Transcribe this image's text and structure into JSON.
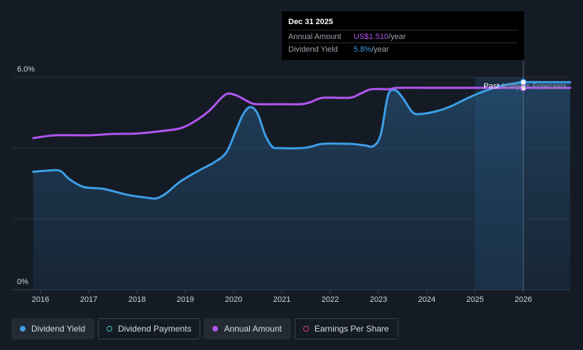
{
  "chart_data": {
    "type": "line",
    "x_axis": {
      "ticks": [
        "2016",
        "2017",
        "2018",
        "2019",
        "2020",
        "2021",
        "2022",
        "2023",
        "2024",
        "2025",
        "2026"
      ],
      "range": [
        2015.6,
        2027.0
      ]
    },
    "y_axis": {
      "ticks": [
        "0%",
        "6.0%"
      ],
      "range": [
        0,
        6.0
      ]
    },
    "grid": true,
    "past_label": "Past",
    "forecast_label": "Analysts Forecasts",
    "forecast_start": 2025.0,
    "highlight_x": 2026.0,
    "series": [
      {
        "name": "Dividend Yield",
        "color": "#3d9fe8",
        "area": true,
        "x": [
          2015.85,
          2016.1,
          2016.4,
          2016.6,
          2016.9,
          2017.3,
          2017.8,
          2018.2,
          2018.4,
          2018.6,
          2018.9,
          2019.3,
          2019.6,
          2019.85,
          2020.05,
          2020.2,
          2020.35,
          2020.5,
          2020.65,
          2020.8,
          2020.95,
          2021.4,
          2021.6,
          2021.85,
          2022.4,
          2022.7,
          2022.9,
          2023.05,
          2023.2,
          2023.35,
          2023.5,
          2023.7,
          2023.85,
          2024.2,
          2024.5,
          2024.8,
          2025.1,
          2025.4,
          2025.6,
          2025.8,
          2026.0,
          2026.5,
          2027.0
        ],
        "y": [
          3.33,
          3.36,
          3.36,
          3.12,
          2.9,
          2.85,
          2.68,
          2.6,
          2.58,
          2.72,
          3.06,
          3.38,
          3.6,
          3.88,
          4.5,
          4.96,
          5.16,
          4.96,
          4.38,
          4.04,
          4.0,
          4.0,
          4.04,
          4.12,
          4.12,
          4.08,
          4.06,
          4.4,
          5.5,
          5.63,
          5.42,
          5.02,
          4.96,
          5.04,
          5.18,
          5.38,
          5.56,
          5.7,
          5.78,
          5.82,
          5.86,
          5.86,
          5.86
        ]
      },
      {
        "name": "Annual Amount",
        "color": "#b256f0",
        "area": false,
        "x": [
          2015.85,
          2016.3,
          2017.0,
          2017.5,
          2018.0,
          2018.5,
          2018.9,
          2019.2,
          2019.5,
          2019.75,
          2019.9,
          2020.1,
          2020.35,
          2020.5,
          2021.0,
          2021.4,
          2021.6,
          2021.85,
          2022.4,
          2022.6,
          2022.85,
          2023.2,
          2023.4,
          2024.0,
          2025.0,
          2025.5,
          2026.0,
          2026.5,
          2027.0
        ],
        "y": [
          4.28,
          4.36,
          4.36,
          4.4,
          4.41,
          4.48,
          4.56,
          4.76,
          5.06,
          5.42,
          5.54,
          5.46,
          5.28,
          5.24,
          5.24,
          5.24,
          5.3,
          5.42,
          5.42,
          5.52,
          5.66,
          5.66,
          5.7,
          5.7,
          5.7,
          5.7,
          5.7,
          5.7,
          5.7
        ]
      }
    ],
    "tooltip": {
      "date": "Dec 31 2025",
      "rows": [
        {
          "label": "Annual Amount",
          "value": "US$1.510",
          "unit": "/year"
        },
        {
          "label": "Dividend Yield",
          "value": "5.8%",
          "unit": "/year"
        }
      ]
    }
  },
  "legend": [
    {
      "label": "Dividend Yield",
      "dot": "filled",
      "color": "#3d9fe8",
      "active": true
    },
    {
      "label": "Dividend Payments",
      "dot": "ring",
      "color": "#3ccfc0",
      "active": false
    },
    {
      "label": "Annual Amount",
      "dot": "filled",
      "color": "#b256f0",
      "active": true
    },
    {
      "label": "Earnings Per Share",
      "dot": "ring",
      "color": "#e0407a",
      "active": false
    }
  ]
}
